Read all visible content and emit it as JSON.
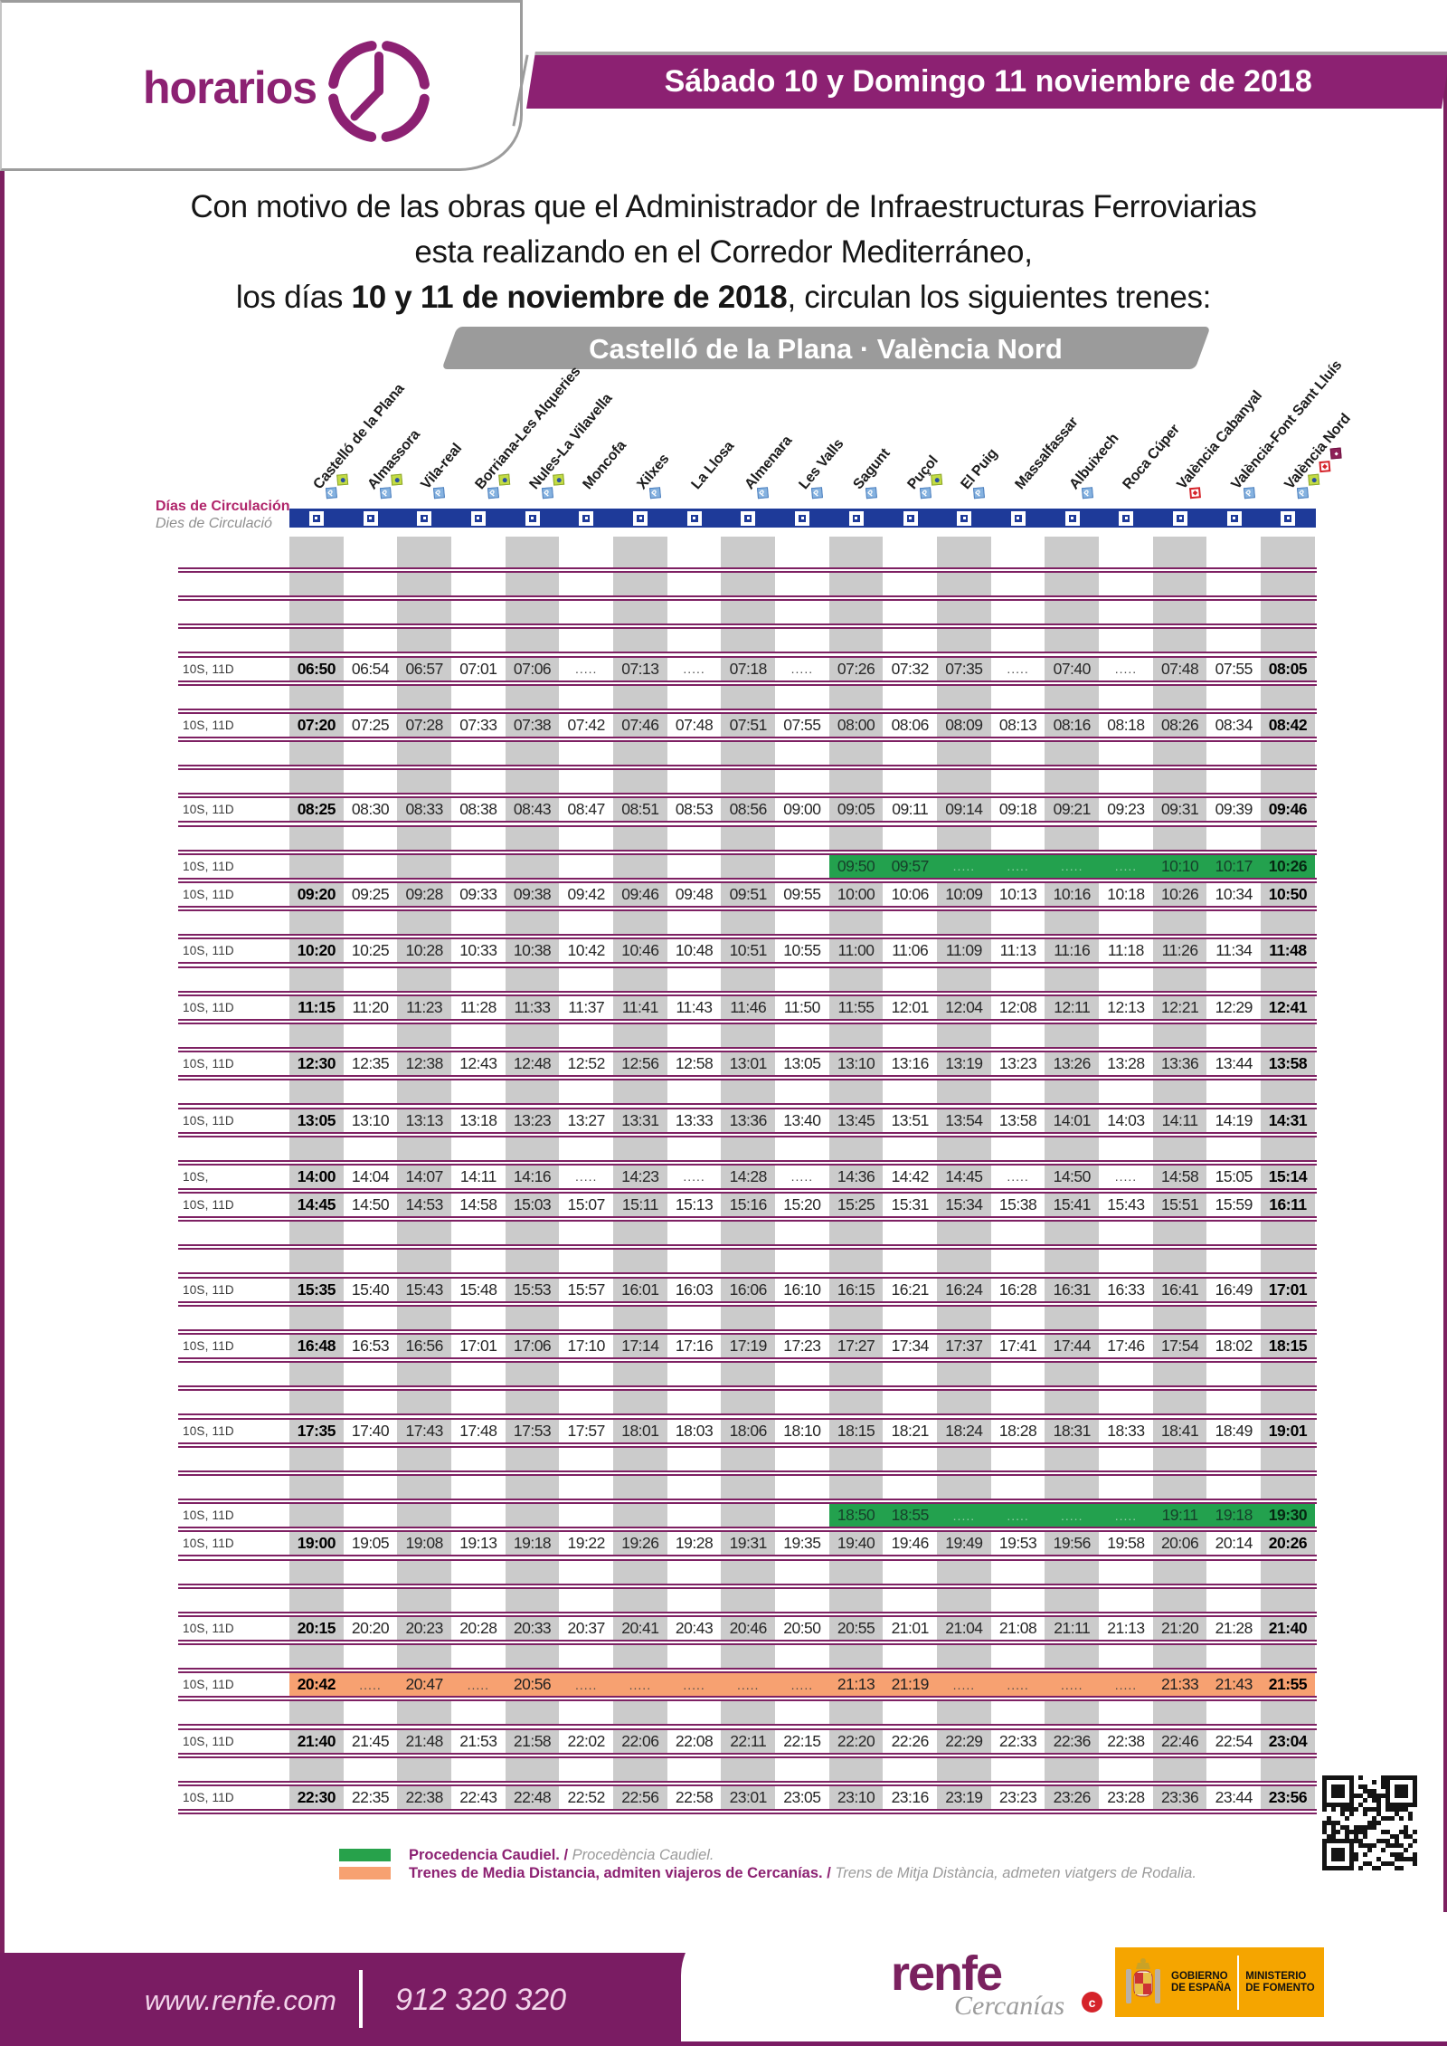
{
  "header": {
    "brand": "horarios",
    "date_banner": "Sábado 10 y Domingo 11 noviembre de 2018"
  },
  "intro": {
    "line1": "Con motivo de las obras  que el Administrador de Infraestructuras Ferroviarias",
    "line2": "esta realizando en el Corredor Mediterráneo,",
    "line3_prefix": "los días ",
    "line3_bold": "10 y 11 de noviembre de 2018",
    "line3_suffix": ", circulan los siguientes trenes:"
  },
  "route_banner": "Castelló de la Plana · València Nord",
  "table": {
    "days_label_es": "Días de Circulación",
    "days_label_ca": "Dies de Circulació",
    "stations": [
      {
        "name": "Castelló de la Plana",
        "icons": [
          "parking",
          "accessible"
        ]
      },
      {
        "name": "Almassora",
        "icons": [
          "parking",
          "accessible"
        ]
      },
      {
        "name": "Vila-real",
        "icons": [
          "parking"
        ]
      },
      {
        "name": "Borriana-Les Alqueries",
        "icons": [
          "parking",
          "accessible"
        ]
      },
      {
        "name": "Nules-La Vilavella",
        "icons": [
          "parking",
          "accessible"
        ]
      },
      {
        "name": "Moncofa",
        "icons": []
      },
      {
        "name": "Xilxes",
        "icons": [
          "parking"
        ]
      },
      {
        "name": "La Llosa",
        "icons": []
      },
      {
        "name": "Almenara",
        "icons": [
          "parking"
        ]
      },
      {
        "name": "Les Valls",
        "icons": [
          "parking"
        ]
      },
      {
        "name": "Sagunt",
        "icons": [
          "parking"
        ]
      },
      {
        "name": "Puçol",
        "icons": [
          "parking",
          "accessible"
        ]
      },
      {
        "name": "El Puig",
        "icons": [
          "parking"
        ]
      },
      {
        "name": "Massalfassar",
        "icons": []
      },
      {
        "name": "Albuixech",
        "icons": [
          "parking"
        ]
      },
      {
        "name": "Roca Cúper",
        "icons": []
      },
      {
        "name": "València Cabanyal",
        "icons": [
          "interchange-red"
        ]
      },
      {
        "name": "València-Font Sant Lluís",
        "icons": [
          "parking"
        ]
      },
      {
        "name": "València Nord",
        "icons": [
          "parking",
          "accessible",
          "interchange-red",
          "metro-maroon"
        ]
      }
    ],
    "rows": [
      {
        "type": "spacer",
        "tall": true
      },
      {
        "type": "spacer"
      },
      {
        "type": "spacer"
      },
      {
        "type": "spacer"
      },
      {
        "type": "train",
        "label": "10S, 11D",
        "times": [
          "06:50",
          "06:54",
          "06:57",
          "07:01",
          "07:06",
          ".....",
          "07:13",
          ".....",
          "07:18",
          ".....",
          "07:26",
          "07:32",
          "07:35",
          ".....",
          "07:40",
          ".....",
          "07:48",
          "07:55",
          "08:05"
        ]
      },
      {
        "type": "spacer"
      },
      {
        "type": "train",
        "label": "10S, 11D",
        "times": [
          "07:20",
          "07:25",
          "07:28",
          "07:33",
          "07:38",
          "07:42",
          "07:46",
          "07:48",
          "07:51",
          "07:55",
          "08:00",
          "08:06",
          "08:09",
          "08:13",
          "08:16",
          "08:18",
          "08:26",
          "08:34",
          "08:42"
        ]
      },
      {
        "type": "spacer"
      },
      {
        "type": "spacer"
      },
      {
        "type": "train",
        "label": "10S, 11D",
        "times": [
          "08:25",
          "08:30",
          "08:33",
          "08:38",
          "08:43",
          "08:47",
          "08:51",
          "08:53",
          "08:56",
          "09:00",
          "09:05",
          "09:11",
          "09:14",
          "09:18",
          "09:21",
          "09:23",
          "09:31",
          "09:39",
          "09:46"
        ]
      },
      {
        "type": "spacer"
      },
      {
        "type": "train-green",
        "label": "10S, 11D",
        "times": [
          "",
          "",
          "",
          "",
          "",
          "",
          "",
          "",
          "",
          "",
          "09:50",
          "09:57",
          ".....",
          ".....",
          ".....",
          ".....",
          "10:10",
          "10:17",
          "10:26"
        ]
      },
      {
        "type": "train",
        "label": "10S, 11D",
        "times": [
          "09:20",
          "09:25",
          "09:28",
          "09:33",
          "09:38",
          "09:42",
          "09:46",
          "09:48",
          "09:51",
          "09:55",
          "10:00",
          "10:06",
          "10:09",
          "10:13",
          "10:16",
          "10:18",
          "10:26",
          "10:34",
          "10:50"
        ]
      },
      {
        "type": "spacer"
      },
      {
        "type": "train",
        "label": "10S, 11D",
        "times": [
          "10:20",
          "10:25",
          "10:28",
          "10:33",
          "10:38",
          "10:42",
          "10:46",
          "10:48",
          "10:51",
          "10:55",
          "11:00",
          "11:06",
          "11:09",
          "11:13",
          "11:16",
          "11:18",
          "11:26",
          "11:34",
          "11:48"
        ]
      },
      {
        "type": "spacer"
      },
      {
        "type": "train",
        "label": "10S, 11D",
        "times": [
          "11:15",
          "11:20",
          "11:23",
          "11:28",
          "11:33",
          "11:37",
          "11:41",
          "11:43",
          "11:46",
          "11:50",
          "11:55",
          "12:01",
          "12:04",
          "12:08",
          "12:11",
          "12:13",
          "12:21",
          "12:29",
          "12:41"
        ]
      },
      {
        "type": "spacer"
      },
      {
        "type": "train",
        "label": "10S, 11D",
        "times": [
          "12:30",
          "12:35",
          "12:38",
          "12:43",
          "12:48",
          "12:52",
          "12:56",
          "12:58",
          "13:01",
          "13:05",
          "13:10",
          "13:16",
          "13:19",
          "13:23",
          "13:26",
          "13:28",
          "13:36",
          "13:44",
          "13:58"
        ]
      },
      {
        "type": "spacer"
      },
      {
        "type": "train",
        "label": "10S, 11D",
        "times": [
          "13:05",
          "13:10",
          "13:13",
          "13:18",
          "13:23",
          "13:27",
          "13:31",
          "13:33",
          "13:36",
          "13:40",
          "13:45",
          "13:51",
          "13:54",
          "13:58",
          "14:01",
          "14:03",
          "14:11",
          "14:19",
          "14:31"
        ]
      },
      {
        "type": "spacer"
      },
      {
        "type": "train",
        "label": "10S,",
        "times": [
          "14:00",
          "14:04",
          "14:07",
          "14:11",
          "14:16",
          ".....",
          "14:23",
          ".....",
          "14:28",
          ".....",
          "14:36",
          "14:42",
          "14:45",
          ".....",
          "14:50",
          ".....",
          "14:58",
          "15:05",
          "15:14"
        ]
      },
      {
        "type": "train",
        "label": "10S, 11D",
        "times": [
          "14:45",
          "14:50",
          "14:53",
          "14:58",
          "15:03",
          "15:07",
          "15:11",
          "15:13",
          "15:16",
          "15:20",
          "15:25",
          "15:31",
          "15:34",
          "15:38",
          "15:41",
          "15:43",
          "15:51",
          "15:59",
          "16:11"
        ]
      },
      {
        "type": "spacer"
      },
      {
        "type": "spacer"
      },
      {
        "type": "train",
        "label": "10S, 11D",
        "times": [
          "15:35",
          "15:40",
          "15:43",
          "15:48",
          "15:53",
          "15:57",
          "16:01",
          "16:03",
          "16:06",
          "16:10",
          "16:15",
          "16:21",
          "16:24",
          "16:28",
          "16:31",
          "16:33",
          "16:41",
          "16:49",
          "17:01"
        ]
      },
      {
        "type": "spacer"
      },
      {
        "type": "train",
        "label": "10S, 11D",
        "times": [
          "16:48",
          "16:53",
          "16:56",
          "17:01",
          "17:06",
          "17:10",
          "17:14",
          "17:16",
          "17:19",
          "17:23",
          "17:27",
          "17:34",
          "17:37",
          "17:41",
          "17:44",
          "17:46",
          "17:54",
          "18:02",
          "18:15"
        ]
      },
      {
        "type": "spacer"
      },
      {
        "type": "spacer"
      },
      {
        "type": "train",
        "label": "10S, 11D",
        "times": [
          "17:35",
          "17:40",
          "17:43",
          "17:48",
          "17:53",
          "17:57",
          "18:01",
          "18:03",
          "18:06",
          "18:10",
          "18:15",
          "18:21",
          "18:24",
          "18:28",
          "18:31",
          "18:33",
          "18:41",
          "18:49",
          "19:01"
        ]
      },
      {
        "type": "spacer"
      },
      {
        "type": "spacer"
      },
      {
        "type": "train-green",
        "label": "10S, 11D",
        "times": [
          "",
          "",
          "",
          "",
          "",
          "",
          "",
          "",
          "",
          "",
          "18:50",
          "18:55",
          ".....",
          ".....",
          ".....",
          ".....",
          "19:11",
          "19:18",
          "19:30"
        ]
      },
      {
        "type": "train",
        "label": "10S, 11D",
        "times": [
          "19:00",
          "19:05",
          "19:08",
          "19:13",
          "19:18",
          "19:22",
          "19:26",
          "19:28",
          "19:31",
          "19:35",
          "19:40",
          "19:46",
          "19:49",
          "19:53",
          "19:56",
          "19:58",
          "20:06",
          "20:14",
          "20:26"
        ]
      },
      {
        "type": "spacer"
      },
      {
        "type": "spacer"
      },
      {
        "type": "train",
        "label": "10S, 11D",
        "times": [
          "20:15",
          "20:20",
          "20:23",
          "20:28",
          "20:33",
          "20:37",
          "20:41",
          "20:43",
          "20:46",
          "20:50",
          "20:55",
          "21:01",
          "21:04",
          "21:08",
          "21:11",
          "21:13",
          "21:20",
          "21:28",
          "21:40"
        ]
      },
      {
        "type": "spacer"
      },
      {
        "type": "train-orange",
        "label": "10S, 11D",
        "times": [
          "20:42",
          ".....",
          "20:47",
          ".....",
          "20:56",
          ".....",
          ".....",
          ".....",
          ".....",
          ".....",
          "21:13",
          "21:19",
          ".....",
          ".....",
          ".....",
          ".....",
          "21:33",
          "21:43",
          "21:55"
        ]
      },
      {
        "type": "spacer"
      },
      {
        "type": "train",
        "label": "10S, 11D",
        "times": [
          "21:40",
          "21:45",
          "21:48",
          "21:53",
          "21:58",
          "22:02",
          "22:06",
          "22:08",
          "22:11",
          "22:15",
          "22:20",
          "22:26",
          "22:29",
          "22:33",
          "22:36",
          "22:38",
          "22:46",
          "22:54",
          "23:04"
        ]
      },
      {
        "type": "spacer"
      },
      {
        "type": "train",
        "label": "10S, 11D",
        "times": [
          "22:30",
          "22:35",
          "22:38",
          "22:43",
          "22:48",
          "22:52",
          "22:56",
          "22:58",
          "23:01",
          "23:05",
          "23:10",
          "23:16",
          "23:19",
          "23:23",
          "23:26",
          "23:28",
          "23:36",
          "23:44",
          "23:56"
        ]
      }
    ]
  },
  "legend": [
    {
      "color": "#27a24b",
      "es": "Procedencia Caudiel.",
      "ca": "Procedència Caudiel."
    },
    {
      "color": "#f7a171",
      "es": "Trenes de Media Distancia, admiten viajeros de Cercanías.",
      "ca": "Trens de Mitja Distància, admeten viatgers de Rodalia."
    }
  ],
  "footer": {
    "url": "www.renfe.com",
    "phone": "912 320 320",
    "brand": "renfe",
    "sub_brand": "Cercanías",
    "gov_line1": "GOBIERNO",
    "gov_line2": "DE ESPAÑA",
    "min_line1": "MINISTERIO",
    "min_line2": "DE FOMENTO"
  },
  "colors": {
    "purple": "#8c2172",
    "separator": "#7e2163",
    "blue_bar": "#1e3a99",
    "stripe_gray": "#cbcbcb",
    "green_row": "#23a14e",
    "orange_row": "#f7a171",
    "footer_purple": "#7a1c63",
    "gov_orange": "#f5a500"
  }
}
